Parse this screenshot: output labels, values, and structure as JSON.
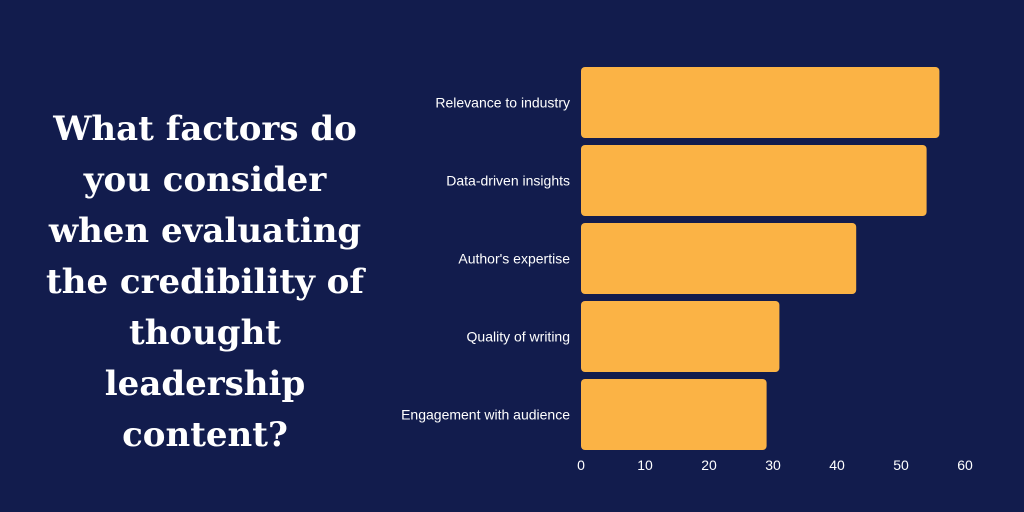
{
  "question": "What factors do you consider when evaluating the credibility of thought leadership content?",
  "colors": {
    "background": "#121c4d",
    "bar": "#fbb345",
    "text": "#ffffff"
  },
  "chart_data": {
    "type": "bar",
    "orientation": "horizontal",
    "categories": [
      "Relevance to industry",
      "Data-driven insights",
      "Author's expertise",
      "Quality of writing",
      "Engagement with audience"
    ],
    "values": [
      56,
      54,
      43,
      31,
      29
    ],
    "xlim": [
      0,
      60
    ],
    "xticks": [
      "0",
      "10",
      "20",
      "30",
      "40",
      "50",
      "60"
    ],
    "grid": false,
    "legend": "none"
  }
}
